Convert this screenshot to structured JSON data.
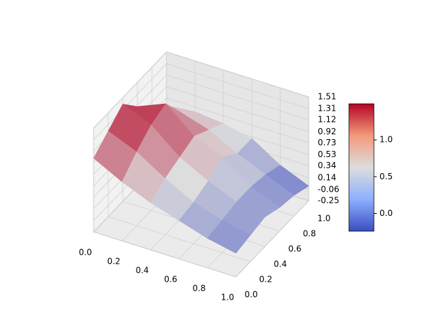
{
  "chart_data": {
    "type": "surface",
    "x": [
      0,
      0.2,
      0.4,
      0.6,
      0.8,
      1
    ],
    "y": [
      0,
      0.2,
      0.4,
      0.6,
      0.8,
      1
    ],
    "z": [
      [
        1.0,
        0.75,
        0.55,
        0.4,
        0.25,
        0.15
      ],
      [
        1.2,
        1.0,
        0.7,
        0.45,
        0.3,
        0.2
      ],
      [
        1.4,
        1.2,
        0.8,
        0.55,
        0.35,
        0.25
      ],
      [
        1.1,
        1.3,
        0.9,
        0.7,
        0.35,
        0.15
      ],
      [
        0.8,
        0.9,
        0.75,
        0.5,
        0.3,
        0.1
      ],
      [
        0.6,
        0.65,
        0.6,
        0.5,
        0.2,
        0.0
      ]
    ],
    "colormap": [
      "#3b4cc0",
      "#dddddd",
      "#b40426"
    ],
    "xlim": [
      0,
      1
    ],
    "ylim": [
      0,
      1
    ],
    "zlim": [
      -0.25,
      1.51
    ],
    "xticks": [
      {
        "value": 0,
        "label": "0.0"
      },
      0.2,
      0.4,
      0.6,
      0.8,
      {
        "value": 1,
        "label": "1.0"
      }
    ],
    "yticks": [
      {
        "value": 0,
        "label": "0.0"
      },
      0.2,
      0.4,
      0.6,
      0.8,
      {
        "value": 1,
        "label": "1.0"
      }
    ],
    "zticks": [
      -0.25,
      -0.06,
      0.14,
      0.34,
      0.53,
      0.73,
      0.92,
      1.12,
      1.31,
      1.51
    ],
    "clim": [
      -0.24,
      1.49
    ],
    "cticks": [
      {
        "value": 0,
        "label": "0.0"
      },
      0.5,
      {
        "value": 1,
        "label": "1.0"
      }
    ],
    "grid": true
  }
}
